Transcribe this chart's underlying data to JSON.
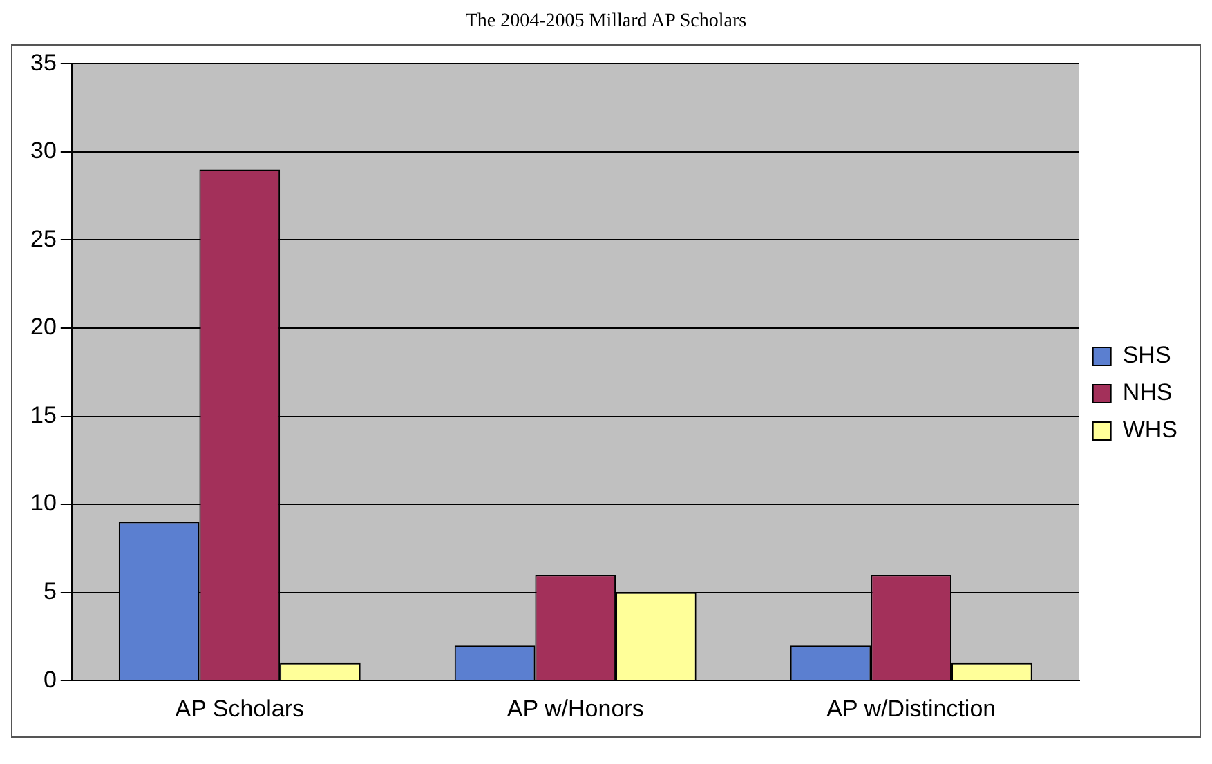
{
  "chart_data": {
    "type": "bar",
    "title": "The 2004-2005 Millard AP Scholars",
    "categories": [
      "AP Scholars",
      "AP w/Honors",
      "AP w/Distinction"
    ],
    "series": [
      {
        "name": "SHS",
        "color": "#5b7fd0",
        "values": [
          9,
          2,
          2
        ]
      },
      {
        "name": "NHS",
        "color": "#a3305a",
        "values": [
          29,
          6,
          6
        ]
      },
      {
        "name": "WHS",
        "color": "#ffff99",
        "values": [
          1,
          5,
          1
        ]
      }
    ],
    "ylim": [
      0,
      35
    ],
    "yticks": [
      0,
      5,
      10,
      15,
      20,
      25,
      30,
      35
    ],
    "grid": "y",
    "legend": "right"
  }
}
